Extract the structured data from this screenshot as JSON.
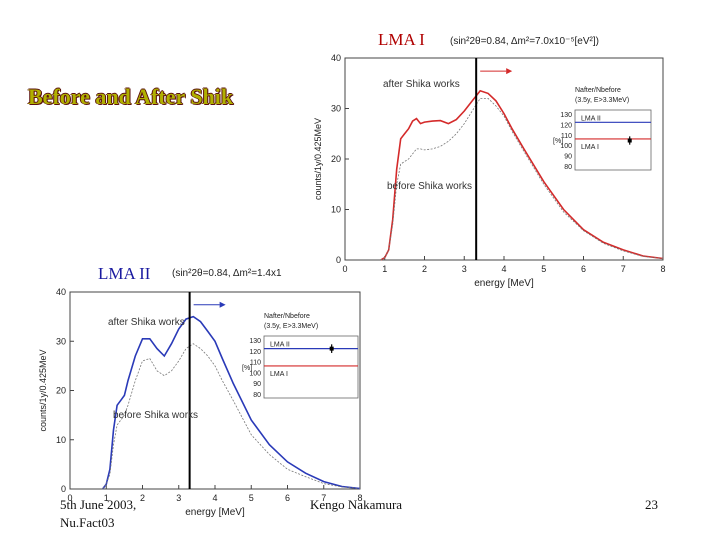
{
  "slide": {
    "title": "Before and After Shik",
    "footer_date": "5th June 2003,",
    "footer_event": "Nu.Fact03",
    "footer_author": "Kengo Nakamura",
    "page_number": "23"
  },
  "colors": {
    "lma1": "#d42a2a",
    "lma2": "#2a3ab8",
    "before": "#777777",
    "marker": "#000000"
  },
  "chart_data": [
    {
      "type": "line",
      "title": "LMA I",
      "params": "(sin²2θ=0.84, Δm²=7.0x10⁻⁵[eV²])",
      "xlabel": "energy [MeV]",
      "ylabel": "counts/1y/0.425MeV",
      "xlim": [
        0,
        8
      ],
      "ylim": [
        0,
        40
      ],
      "xticks": [
        "0",
        "1",
        "2",
        "3",
        "4",
        "5",
        "6",
        "7",
        "8"
      ],
      "yticks": [
        "0",
        "10",
        "20",
        "30",
        "40"
      ],
      "threshold_mev": 3.3,
      "annotations": {
        "after": "after Shika works",
        "before": "before Shika works"
      },
      "series": [
        {
          "role": "after",
          "x": [
            0.9,
            1.0,
            1.1,
            1.2,
            1.3,
            1.4,
            1.5,
            1.6,
            1.7,
            1.8,
            1.9,
            2.0,
            2.2,
            2.4,
            2.6,
            2.8,
            3.0,
            3.2,
            3.4,
            3.6,
            3.8,
            4.0,
            4.2,
            4.5,
            5.0,
            5.5,
            6.0,
            6.5,
            7.0,
            7.5,
            8.0
          ],
          "values": [
            0,
            0.5,
            2,
            8,
            18,
            24,
            25,
            26,
            27.5,
            28,
            27,
            27.3,
            27.5,
            27.6,
            27,
            27.8,
            29.5,
            31.5,
            33.5,
            33,
            31.5,
            29,
            26,
            22,
            15.5,
            10,
            6,
            3.5,
            2,
            0.8,
            0.3
          ]
        },
        {
          "role": "before",
          "x": [
            0.9,
            1.0,
            1.1,
            1.2,
            1.3,
            1.4,
            1.5,
            1.6,
            1.7,
            1.8,
            1.9,
            2.0,
            2.2,
            2.4,
            2.6,
            2.8,
            3.0,
            3.2,
            3.4,
            3.6,
            3.8,
            4.0,
            4.2,
            4.5,
            5.0,
            5.5,
            6.0,
            6.5,
            7.0,
            7.5,
            8.0
          ],
          "values": [
            0,
            0.5,
            2,
            7,
            15,
            19,
            19.5,
            20,
            21,
            22,
            22,
            21.8,
            22,
            22.5,
            23.5,
            25,
            27,
            29.5,
            32,
            32,
            30.5,
            28.5,
            25.5,
            21.5,
            15,
            9.5,
            5.8,
            3.3,
            1.8,
            0.7,
            0.3
          ]
        }
      ],
      "inset": {
        "header": "Nafter/Nbefore",
        "subheader": "(3.5y, E>3.3MeV)",
        "ylabel": "[%]",
        "yticks": [
          "130",
          "120",
          "110",
          "100",
          "90",
          "80"
        ],
        "ylim": [
          80,
          130
        ],
        "lines": [
          {
            "label": "LMA II",
            "value": 122
          },
          {
            "label": "LMA I",
            "value": 106
          }
        ],
        "point": {
          "value": 104.5,
          "error": 4
        }
      }
    },
    {
      "type": "line",
      "title": "LMA II",
      "params": "(sin²2θ=0.84, Δm²=1.4x1",
      "xlabel": "energy [MeV]",
      "ylabel": "counts/1y/0.425MeV",
      "xlim": [
        0,
        8
      ],
      "ylim": [
        0,
        40
      ],
      "xticks": [
        "0",
        "1",
        "2",
        "3",
        "4",
        "5",
        "6",
        "7",
        "8"
      ],
      "yticks": [
        "0",
        "10",
        "20",
        "30",
        "40"
      ],
      "threshold_mev": 3.3,
      "annotations": {
        "after": "after Shika works",
        "before": "before Shika works"
      },
      "series": [
        {
          "role": "after",
          "x": [
            0.9,
            1.0,
            1.1,
            1.2,
            1.3,
            1.4,
            1.5,
            1.6,
            1.8,
            2.0,
            2.2,
            2.4,
            2.6,
            2.8,
            3.0,
            3.2,
            3.4,
            3.6,
            3.8,
            4.0,
            4.2,
            4.5,
            5.0,
            5.5,
            6.0,
            6.5,
            7.0,
            7.5,
            8.0
          ],
          "values": [
            0,
            1,
            4,
            12,
            17,
            18,
            19,
            22,
            27,
            30.5,
            30.5,
            28.5,
            27,
            29.5,
            32.5,
            34.5,
            35,
            34,
            32,
            30,
            26.5,
            21.5,
            14,
            9,
            5.5,
            3.2,
            1.5,
            0.5,
            0.1
          ]
        },
        {
          "role": "before",
          "x": [
            0.9,
            1.0,
            1.1,
            1.2,
            1.3,
            1.4,
            1.5,
            1.6,
            1.8,
            2.0,
            2.2,
            2.4,
            2.6,
            2.8,
            3.0,
            3.2,
            3.4,
            3.6,
            3.8,
            4.0,
            4.2,
            4.5,
            5.0,
            5.5,
            6.0,
            6.5,
            7.0,
            7.5,
            8.0
          ],
          "values": [
            0,
            1,
            3,
            9,
            13,
            14,
            15,
            17,
            22,
            26,
            26.5,
            24,
            23,
            24,
            26,
            28.5,
            29.5,
            28.5,
            27,
            25,
            22,
            18,
            11,
            7,
            4,
            2.5,
            1.1,
            0.4,
            0.1
          ]
        }
      ],
      "inset": {
        "header": "Nafter/Nbefore",
        "subheader": "(3.5y, E>3.3MeV)",
        "ylabel": "[%]",
        "yticks": [
          "130",
          "120",
          "110",
          "100",
          "90",
          "80"
        ],
        "ylim": [
          80,
          130
        ],
        "lines": [
          {
            "label": "LMA II",
            "value": 122
          },
          {
            "label": "LMA I",
            "value": 106
          }
        ],
        "point": {
          "value": 122,
          "error": 4
        }
      }
    }
  ]
}
